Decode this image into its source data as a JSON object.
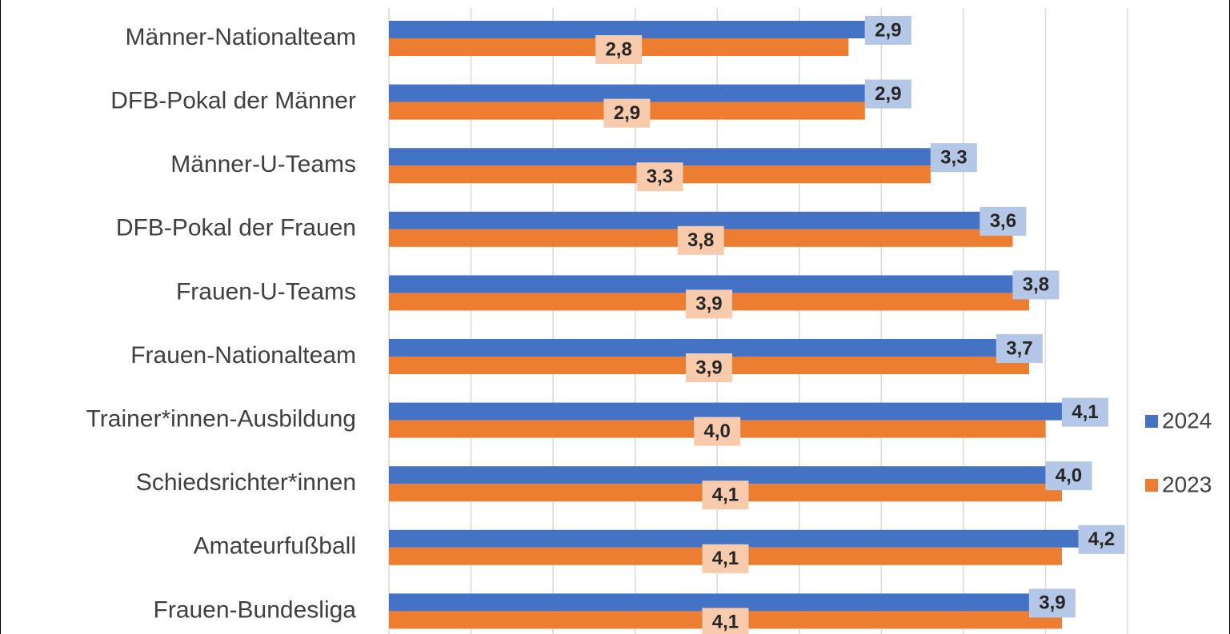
{
  "chart_data": {
    "type": "bar",
    "orientation": "horizontal",
    "categories": [
      "Männer-Nationalteam",
      "DFB-Pokal der Männer",
      "Männer-U-Teams",
      "DFB-Pokal der Frauen",
      "Frauen-U-Teams",
      "Frauen-Nationalteam",
      "Trainer*innen-Ausbildung",
      "Schiedsrichter*innen",
      "Amateurfußball",
      "Frauen-Bundesliga"
    ],
    "series": [
      {
        "name": "2024",
        "color": "#4472c4",
        "label_color": "#b4c7e7",
        "values": [
          2.9,
          2.9,
          3.3,
          3.6,
          3.8,
          3.7,
          4.1,
          4.0,
          4.2,
          3.9
        ],
        "value_labels": [
          "2,9",
          "2,9",
          "3,3",
          "3,6",
          "3,8",
          "3,7",
          "4,1",
          "4,0",
          "4,2",
          "3,9"
        ]
      },
      {
        "name": "2023",
        "color": "#ed7d31",
        "label_color": "#f8cbad",
        "values": [
          2.8,
          2.9,
          3.3,
          3.8,
          3.9,
          3.9,
          4.0,
          4.1,
          4.1,
          4.1
        ],
        "value_labels": [
          "2,8",
          "2,9",
          "3,3",
          "3,8",
          "3,9",
          "3,9",
          "4,0",
          "4,1",
          "4,1",
          "4,1"
        ]
      }
    ],
    "xlim": [
      0,
      4.5
    ],
    "xticks": [
      0,
      0.5,
      1,
      1.5,
      2,
      2.5,
      3,
      3.5,
      4,
      4.5
    ],
    "grid": true,
    "legend": "right"
  }
}
